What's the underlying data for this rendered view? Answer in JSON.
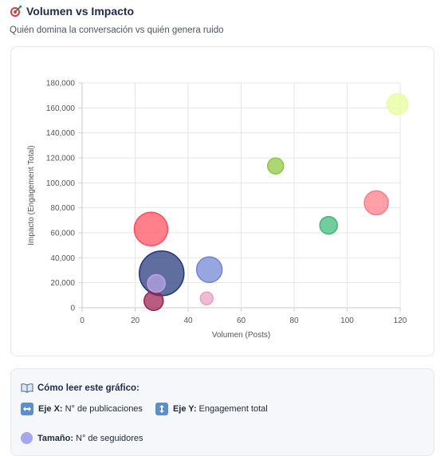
{
  "header": {
    "title": "Volumen vs Impacto",
    "subtitle": "Quién domina la conversación vs quién genera ruido"
  },
  "icons": {
    "title_icon": "target-icon",
    "legend_icon": "open-book-icon",
    "x_icon": "left-right-arrow-icon",
    "y_icon": "up-down-arrow-icon",
    "size_icon": "circle-icon"
  },
  "chart_data": {
    "type": "scatter",
    "title": "",
    "xlabel": "Volumen (Posts)",
    "ylabel": "Impacto (Engagement Total)",
    "xlim": [
      0,
      120
    ],
    "ylim": [
      0,
      180000
    ],
    "x_ticks": [
      "0",
      "20",
      "40",
      "60",
      "80",
      "100",
      "120"
    ],
    "y_ticks": [
      "0",
      "20,000",
      "40,000",
      "60,000",
      "80,000",
      "100,000",
      "120,000",
      "140,000",
      "160,000",
      "180,000"
    ],
    "grid": true,
    "points": [
      {
        "x": 30,
        "y": 27500,
        "r": 28,
        "color": "#22347a"
      },
      {
        "x": 26,
        "y": 63000,
        "r": 21,
        "color": "#ff4d5e"
      },
      {
        "x": 48,
        "y": 30500,
        "r": 16,
        "color": "#6f84d2"
      },
      {
        "x": 111,
        "y": 84000,
        "r": 15,
        "color": "#ff7a85"
      },
      {
        "x": 119,
        "y": 163000,
        "r": 13,
        "color": "#e6ff99"
      },
      {
        "x": 27,
        "y": 5500,
        "r": 12,
        "color": "#9c1e4e"
      },
      {
        "x": 28,
        "y": 19500,
        "r": 11,
        "color": "#b8a6e6"
      },
      {
        "x": 93,
        "y": 66000,
        "r": 11,
        "color": "#3cb878"
      },
      {
        "x": 73,
        "y": 113500,
        "r": 10,
        "color": "#8dc63f"
      },
      {
        "x": 47,
        "y": 7500,
        "r": 8,
        "color": "#e8a0c4"
      }
    ]
  },
  "legend": {
    "title": "Cómo leer este gráfico:",
    "x_label": "Eje X:",
    "x_text": "N° de publicaciones",
    "y_label": "Eje Y:",
    "y_text": "Engagement total",
    "size_label": "Tamaño:",
    "size_text": "N° de seguidores",
    "size_color": "#a5a6f0",
    "axis_icon_color": "#5b8fc9"
  }
}
